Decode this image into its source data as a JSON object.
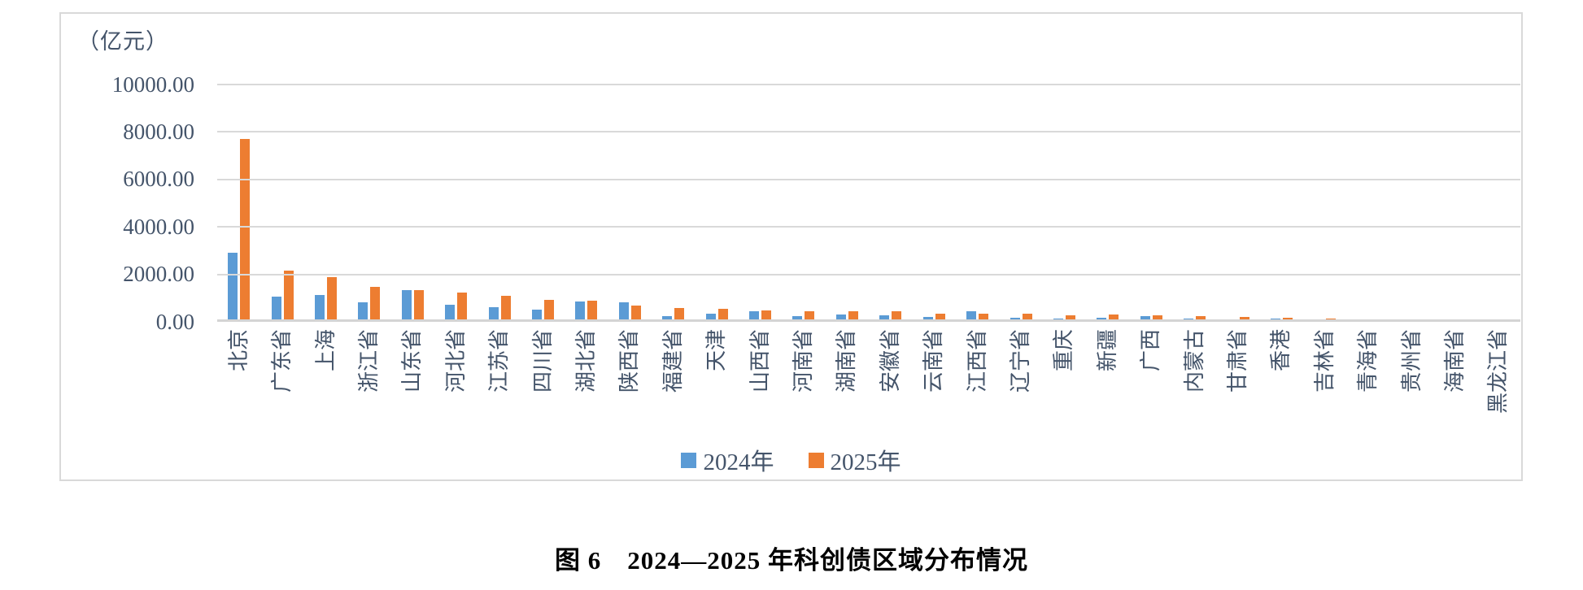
{
  "chart": {
    "unit_label": "（亿元）",
    "y_ticks": [
      "10000.00",
      "8000.00",
      "6000.00",
      "4000.00",
      "2000.00",
      "0.00"
    ],
    "colors": {
      "series_2024": "#5B9BD5",
      "series_2025": "#ED7D31",
      "gridline": "#D9D9D9",
      "axis_text": "#44546A",
      "frame_border": "#D9D9D9"
    }
  },
  "legend": [
    {
      "label": "2024年",
      "color": "#5B9BD5"
    },
    {
      "label": "2025年",
      "color": "#ED7D31"
    }
  ],
  "caption": "图 6　2024—2025 年科创债区域分布情况",
  "chart_data": {
    "type": "bar",
    "title": "2024—2025 年科创债区域分布情况",
    "ylabel": "（亿元）",
    "xlabel": "",
    "ylim": [
      0,
      10000
    ],
    "y_tick_step": 2000,
    "grid": true,
    "legend_position": "bottom",
    "x_label_rotation": -90,
    "categories": [
      "北京",
      "广东省",
      "上海",
      "浙江省",
      "山东省",
      "河北省",
      "江苏省",
      "四川省",
      "湖北省",
      "陕西省",
      "福建省",
      "天津",
      "山西省",
      "河南省",
      "湖南省",
      "安徽省",
      "云南省",
      "江西省",
      "辽宁省",
      "重庆",
      "新疆",
      "广西",
      "内蒙古",
      "甘肃省",
      "香港",
      "吉林省",
      "青海省",
      "贵州省",
      "海南省",
      "黑龙江省"
    ],
    "series": [
      {
        "name": "2024年",
        "color": "#5B9BD5",
        "values": [
          2800,
          950,
          1030,
          720,
          1240,
          620,
          500,
          410,
          770,
          710,
          140,
          250,
          330,
          150,
          200,
          160,
          100,
          360,
          60,
          20,
          60,
          140,
          20,
          0,
          40,
          0,
          0,
          0,
          0,
          0
        ]
      },
      {
        "name": "2025年",
        "color": "#ED7D31",
        "values": [
          7620,
          2060,
          1790,
          1370,
          1240,
          1120,
          1010,
          820,
          800,
          580,
          480,
          450,
          390,
          330,
          350,
          330,
          240,
          230,
          250,
          170,
          190,
          170,
          140,
          120,
          60,
          40,
          0,
          0,
          0,
          0
        ]
      }
    ]
  }
}
